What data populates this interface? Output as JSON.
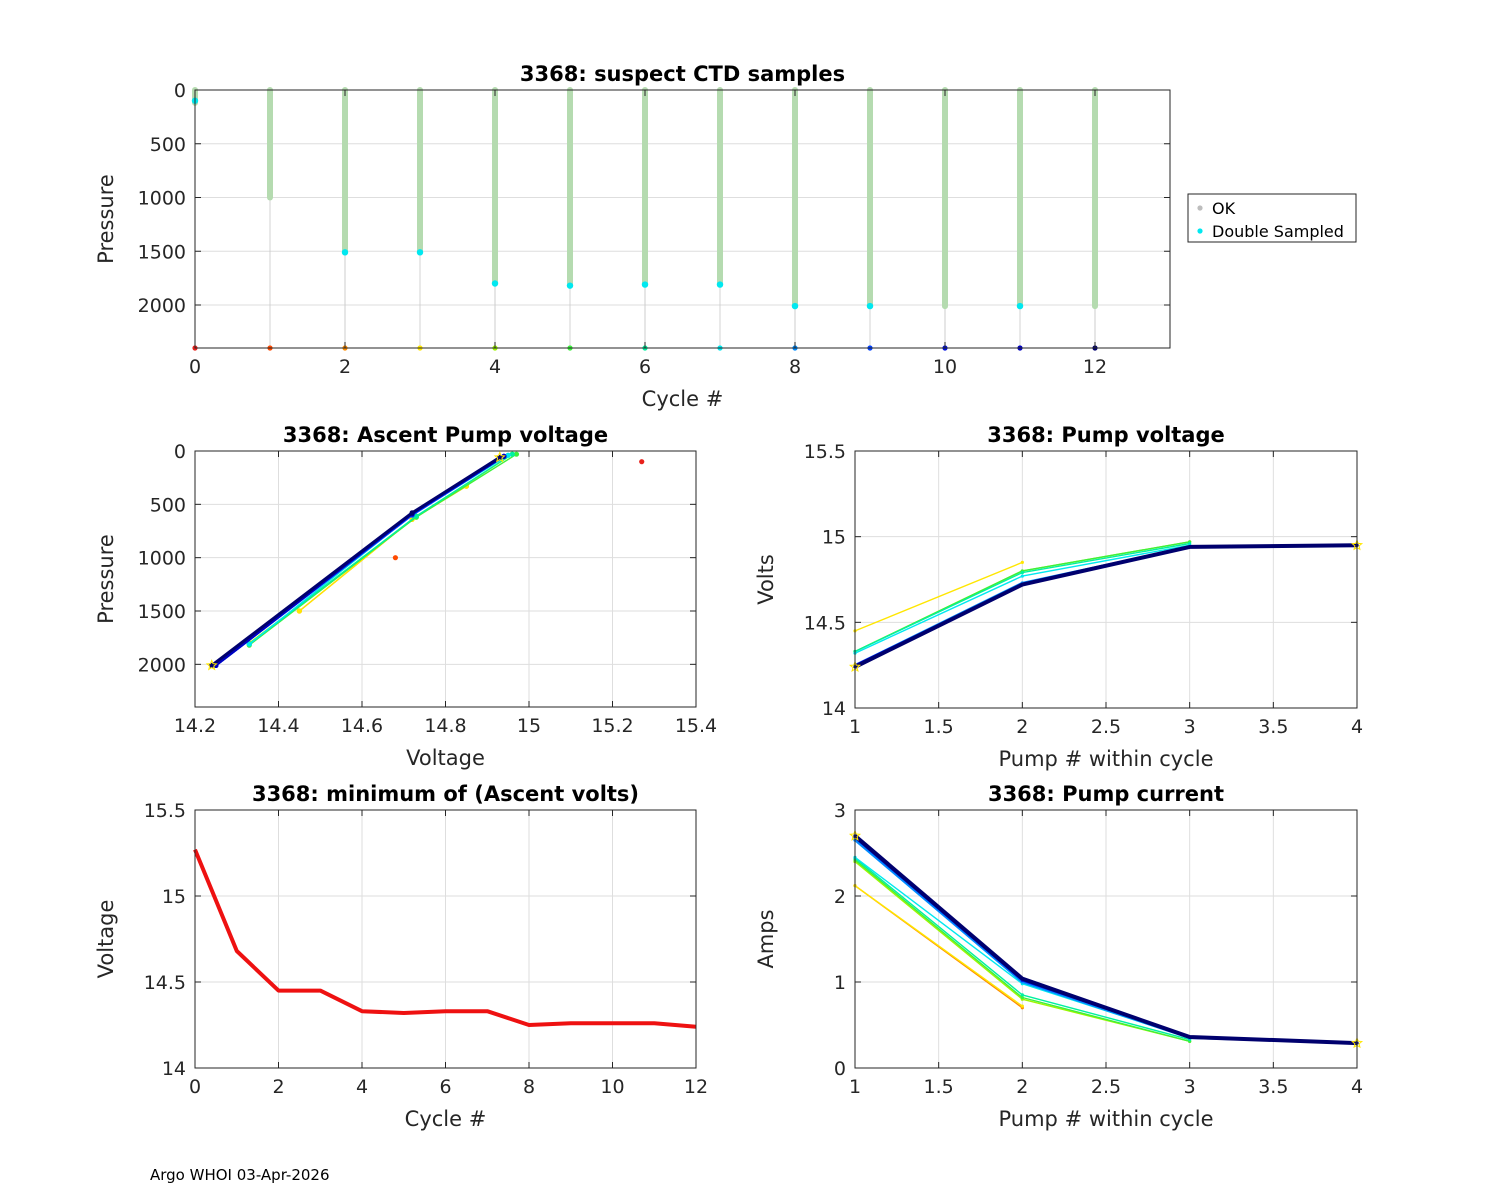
{
  "footer": "Argo WHOI 03-Apr-2026",
  "colors": {
    "ok": "#b5dbb0",
    "double": "#00e8f0",
    "grid": "#dedede",
    "axis": "#262626",
    "legend_ok": "#bdbdbd"
  },
  "chart_data": [
    {
      "id": "ctd",
      "type": "scatter",
      "title": "3368: suspect CTD samples",
      "xlabel": "Cycle #",
      "ylabel": "Pressure",
      "xlim": [
        0,
        13
      ],
      "ylim": [
        0,
        2400
      ],
      "y_reversed": true,
      "xticks": [
        0,
        2,
        4,
        6,
        8,
        10,
        12
      ],
      "yticks": [
        0,
        500,
        1000,
        1500,
        2000
      ],
      "legend": {
        "position": "outside-right",
        "entries": [
          "OK",
          "Double Sampled"
        ]
      },
      "cycles": [
        0,
        1,
        2,
        3,
        4,
        5,
        6,
        7,
        8,
        9,
        10,
        11,
        12
      ],
      "profile_max_pressure": [
        120,
        1000,
        1510,
        1510,
        1800,
        1820,
        1810,
        1810,
        2010,
        2010,
        2010,
        2010,
        2010
      ],
      "double_sampled_pressure": [
        100,
        null,
        1510,
        1510,
        1800,
        1820,
        1810,
        1810,
        2010,
        2010,
        null,
        2010,
        null
      ],
      "cycle_colors": [
        "#e8201a",
        "#ff4a00",
        "#ff8c00",
        "#ffe600",
        "#9ef500",
        "#3cf03c",
        "#00f0a0",
        "#00e8f0",
        "#008cff",
        "#0040ff",
        "#0010e0",
        "#0000c0",
        "#00006e"
      ]
    },
    {
      "id": "ascent",
      "type": "line",
      "title": "3368: Ascent Pump voltage",
      "xlabel": "Voltage",
      "ylabel": "Pressure",
      "xlim": [
        14.2,
        15.4
      ],
      "ylim": [
        0,
        2400
      ],
      "y_reversed": true,
      "xticks": [
        14.2,
        14.4,
        14.6,
        14.8,
        15,
        15.2,
        15.4
      ],
      "yticks": [
        0,
        500,
        1000,
        1500,
        2000
      ],
      "series": [
        {
          "cycle": 0,
          "color": "#e8201a",
          "points": [
            [
              15.27,
              100
            ]
          ]
        },
        {
          "cycle": 1,
          "color": "#ff4a00",
          "points": [
            [
              14.68,
              1000
            ]
          ]
        },
        {
          "cycle": 2,
          "color": "#ff8c00",
          "points": [
            [
              14.45,
              1500
            ],
            [
              14.72,
              640
            ],
            [
              14.85,
              330
            ]
          ]
        },
        {
          "cycle": 3,
          "color": "#ffe600",
          "points": [
            [
              14.45,
              1500
            ],
            [
              14.72,
              640
            ],
            [
              14.85,
              330
            ]
          ]
        },
        {
          "cycle": 4,
          "color": "#9ef500",
          "points": [
            [
              14.33,
              1800
            ],
            [
              14.73,
              620
            ],
            [
              14.96,
              30
            ]
          ]
        },
        {
          "cycle": 5,
          "color": "#3cf03c",
          "points": [
            [
              14.33,
              1820
            ],
            [
              14.73,
              620
            ],
            [
              14.97,
              30
            ]
          ]
        },
        {
          "cycle": 6,
          "color": "#00f0a0",
          "points": [
            [
              14.33,
              1810
            ],
            [
              14.73,
              610
            ],
            [
              14.96,
              30
            ]
          ]
        },
        {
          "cycle": 7,
          "color": "#00e8f0",
          "points": [
            [
              14.33,
              1810
            ],
            [
              14.72,
              600
            ],
            [
              14.95,
              40
            ]
          ]
        },
        {
          "cycle": 8,
          "color": "#008cff",
          "points": [
            [
              14.25,
              2010
            ],
            [
              14.72,
              600
            ],
            [
              14.94,
              50
            ]
          ]
        },
        {
          "cycle": 9,
          "color": "#0040ff",
          "points": [
            [
              14.25,
              2010
            ],
            [
              14.72,
              600
            ],
            [
              14.94,
              50
            ]
          ]
        },
        {
          "cycle": 10,
          "color": "#0010e0",
          "points": [
            [
              14.25,
              2010
            ],
            [
              14.72,
              590
            ],
            [
              14.94,
              50
            ]
          ]
        },
        {
          "cycle": 11,
          "color": "#0000c0",
          "points": [
            [
              14.25,
              2010
            ],
            [
              14.72,
              590
            ],
            [
              14.94,
              50
            ]
          ]
        },
        {
          "cycle": 12,
          "color": "#00006e",
          "points": [
            [
              14.24,
              2010
            ],
            [
              14.72,
              580
            ],
            [
              14.93,
              60
            ]
          ]
        }
      ]
    },
    {
      "id": "pumpv",
      "type": "line",
      "title": "3368: Pump voltage",
      "xlabel": "Pump # within cycle",
      "ylabel": "Volts",
      "xlim": [
        1,
        4
      ],
      "ylim": [
        14,
        15.5
      ],
      "xticks": [
        1,
        1.5,
        2,
        2.5,
        3,
        3.5,
        4
      ],
      "yticks": [
        14,
        14.5,
        15,
        15.5
      ],
      "series": [
        {
          "cycle": 3,
          "color": "#ffe600",
          "x": [
            1,
            2
          ],
          "y": [
            14.45,
            14.85
          ]
        },
        {
          "cycle": 4,
          "color": "#9ef500",
          "x": [
            1,
            2,
            3
          ],
          "y": [
            14.33,
            14.8,
            14.97
          ]
        },
        {
          "cycle": 5,
          "color": "#3cf03c",
          "x": [
            1,
            2,
            3
          ],
          "y": [
            14.33,
            14.8,
            14.97
          ]
        },
        {
          "cycle": 6,
          "color": "#00f0a0",
          "x": [
            1,
            2,
            3
          ],
          "y": [
            14.33,
            14.79,
            14.96
          ]
        },
        {
          "cycle": 7,
          "color": "#00e8f0",
          "x": [
            1,
            2,
            3
          ],
          "y": [
            14.32,
            14.77,
            14.95
          ]
        },
        {
          "cycle": 8,
          "color": "#008cff",
          "x": [
            1,
            2,
            3,
            4
          ],
          "y": [
            14.25,
            14.73,
            14.94,
            14.95
          ]
        },
        {
          "cycle": 10,
          "color": "#0010e0",
          "x": [
            1,
            2,
            3,
            4
          ],
          "y": [
            14.25,
            14.72,
            14.94,
            14.95
          ]
        },
        {
          "cycle": 12,
          "color": "#00006e",
          "x": [
            1,
            2,
            3,
            4
          ],
          "y": [
            14.24,
            14.72,
            14.94,
            14.95
          ]
        }
      ]
    },
    {
      "id": "minv",
      "type": "line",
      "title": "3368: minimum of (Ascent volts)",
      "xlabel": "Cycle #",
      "ylabel": "Voltage",
      "xlim": [
        0,
        12
      ],
      "ylim": [
        14,
        15.5
      ],
      "xticks": [
        0,
        2,
        4,
        6,
        8,
        10,
        12
      ],
      "yticks": [
        14,
        14.5,
        15,
        15.5
      ],
      "series": [
        {
          "name": "minimum ascent volts",
          "color": "#ee1111",
          "x": [
            0,
            1,
            2,
            3,
            4,
            5,
            6,
            7,
            8,
            9,
            10,
            11,
            12
          ],
          "y": [
            15.27,
            14.68,
            14.45,
            14.45,
            14.33,
            14.32,
            14.33,
            14.33,
            14.25,
            14.26,
            14.26,
            14.26,
            14.24
          ]
        }
      ]
    },
    {
      "id": "current",
      "type": "line",
      "title": "3368: Pump current",
      "xlabel": "Pump # within cycle",
      "ylabel": "Amps",
      "xlim": [
        1,
        4
      ],
      "ylim": [
        0,
        3
      ],
      "xticks": [
        1,
        1.5,
        2,
        2.5,
        3,
        3.5,
        4
      ],
      "yticks": [
        0,
        1,
        2,
        3
      ],
      "series": [
        {
          "cycle": 2,
          "color": "#ff8c00",
          "x": [
            1,
            2
          ],
          "y": [
            2.12,
            0.7
          ]
        },
        {
          "cycle": 3,
          "color": "#ffe600",
          "x": [
            1,
            2
          ],
          "y": [
            2.12,
            0.72
          ]
        },
        {
          "cycle": 4,
          "color": "#9ef500",
          "x": [
            1,
            2,
            3
          ],
          "y": [
            2.4,
            0.8,
            0.31
          ]
        },
        {
          "cycle": 5,
          "color": "#3cf03c",
          "x": [
            1,
            2,
            3
          ],
          "y": [
            2.42,
            0.82,
            0.31
          ]
        },
        {
          "cycle": 6,
          "color": "#00f0a0",
          "x": [
            1,
            2,
            3
          ],
          "y": [
            2.44,
            0.85,
            0.33
          ]
        },
        {
          "cycle": 7,
          "color": "#00e8f0",
          "x": [
            1,
            2,
            3
          ],
          "y": [
            2.45,
            0.98,
            0.35
          ]
        },
        {
          "cycle": 8,
          "color": "#008cff",
          "x": [
            1,
            2,
            3,
            4
          ],
          "y": [
            2.65,
            1.0,
            0.35,
            0.29
          ]
        },
        {
          "cycle": 10,
          "color": "#0010e0",
          "x": [
            1,
            2,
            3,
            4
          ],
          "y": [
            2.68,
            1.02,
            0.36,
            0.29
          ]
        },
        {
          "cycle": 12,
          "color": "#00006e",
          "x": [
            1,
            2,
            3,
            4
          ],
          "y": [
            2.7,
            1.04,
            0.36,
            0.29
          ]
        }
      ]
    }
  ]
}
